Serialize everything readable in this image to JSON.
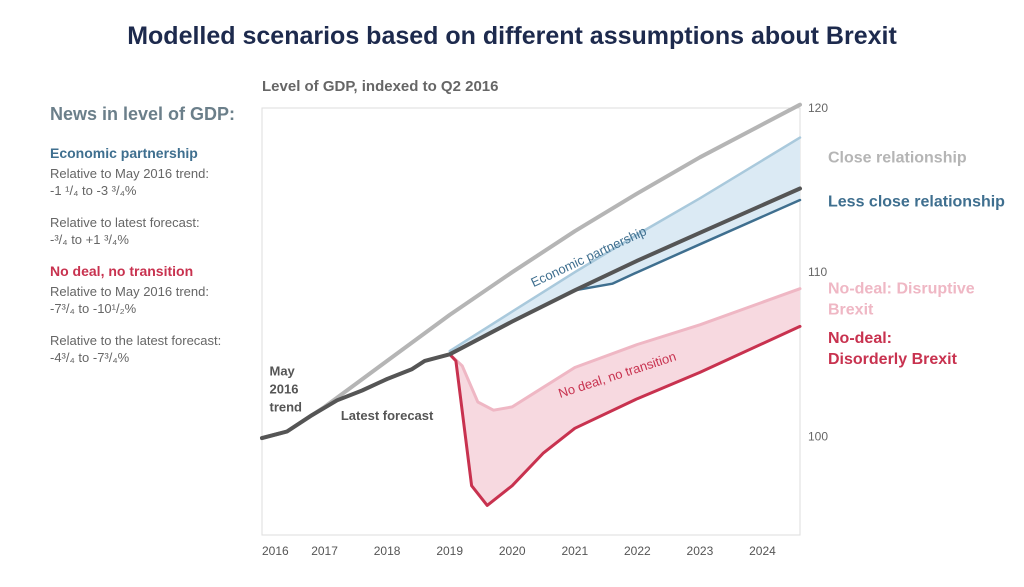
{
  "title": "Modelled scenarios based on different assumptions about Brexit",
  "sidebar": {
    "heading": "News in level of GDP:",
    "sections": [
      {
        "title": "Economic partnership",
        "items": [
          {
            "label": "Relative to May 2016 trend:",
            "value": "-1 ¹/₄ to -3 ³/₄%"
          },
          {
            "label": "Relative to latest forecast:",
            "value": "-³/₄ to +1 ³/₄%"
          }
        ]
      },
      {
        "title": "No deal, no transition",
        "items": [
          {
            "label": "Relative to May 2016 trend:",
            "value": "-7³/₄ to -10¹/₂%"
          },
          {
            "label": "Relative to the latest forecast:",
            "value": "-4³/₄ to -7³/₄%"
          }
        ]
      }
    ]
  },
  "colors": {
    "trend": "#b5b5b5",
    "forecast": "#555555",
    "close": "#a9c9dc",
    "close_fill": "#dbeaf4",
    "less_close": "#3f6f8f",
    "disruptive": "#efb7c4",
    "disorderly": "#c8324f",
    "nodeal_fill": "#f7d9e0",
    "title": "#1d2a4d"
  },
  "chart_data": {
    "type": "line",
    "subtitle": "Level of GDP, indexed to Q2 2016",
    "xlim": [
      2016.0,
      2024.6
    ],
    "ylim": [
      94,
      120
    ],
    "y_axis_position": "right",
    "grid": false,
    "y_ticks": [
      100,
      110,
      120
    ],
    "x_ticks": [
      {
        "value": 2016.0,
        "label": "2016"
      },
      {
        "value": 2017.0,
        "label": "2017"
      },
      {
        "value": 2018.0,
        "label": "2018"
      },
      {
        "value": 2019.0,
        "label": "2019"
      },
      {
        "value": 2020.0,
        "label": "2020"
      },
      {
        "value": 2021.0,
        "label": "2021"
      },
      {
        "value": 2022.0,
        "label": "2022"
      },
      {
        "value": 2023.0,
        "label": "2023"
      },
      {
        "value": 2024.0,
        "label": "2024"
      }
    ],
    "series": [
      {
        "name": "May 2016 trend",
        "key": "trend",
        "x": [
          2016.0,
          2016.4,
          2017.0,
          2018.0,
          2019.0,
          2020.0,
          2021.0,
          2022.0,
          2023.0,
          2024.6
        ],
        "y": [
          99.9,
          100.3,
          101.8,
          104.6,
          107.4,
          110.0,
          112.5,
          114.8,
          117.0,
          120.2
        ]
      },
      {
        "name": "Latest forecast",
        "key": "forecast",
        "x": [
          2016.0,
          2016.4,
          2016.8,
          2017.2,
          2017.6,
          2018.0,
          2018.4,
          2018.6,
          2019.0,
          2020.0,
          2021.0,
          2022.0,
          2023.0,
          2024.6
        ],
        "y": [
          99.9,
          100.3,
          101.3,
          102.2,
          102.8,
          103.5,
          104.1,
          104.6,
          105.0,
          107.0,
          108.9,
          110.7,
          112.4,
          115.1
        ]
      },
      {
        "name": "Close relationship",
        "key": "close",
        "x": [
          2019.0,
          2020.0,
          2021.0,
          2022.0,
          2023.0,
          2024.6
        ],
        "y": [
          105.2,
          107.6,
          110.0,
          112.3,
          114.5,
          118.2
        ]
      },
      {
        "name": "Less close relationship",
        "key": "less_close",
        "x": [
          2019.0,
          2020.0,
          2021.0,
          2021.6,
          2022.0,
          2023.0,
          2024.6
        ],
        "y": [
          105.0,
          107.0,
          108.9,
          109.3,
          110.0,
          111.7,
          114.4
        ]
      },
      {
        "name": "No-deal: Disruptive Brexit",
        "key": "disruptive",
        "x": [
          2019.0,
          2019.2,
          2019.45,
          2019.7,
          2020.0,
          2020.5,
          2021.0,
          2022.0,
          2023.0,
          2024.6
        ],
        "y": [
          105.0,
          104.3,
          102.1,
          101.6,
          101.8,
          103.0,
          104.2,
          105.6,
          106.8,
          109.0
        ]
      },
      {
        "name": "No-deal: Disorderly Brexit",
        "key": "disorderly",
        "x": [
          2019.0,
          2019.1,
          2019.35,
          2019.6,
          2020.0,
          2020.5,
          2021.0,
          2022.0,
          2023.0,
          2024.6
        ],
        "y": [
          105.0,
          104.6,
          97.0,
          95.8,
          97.0,
          99.0,
          100.5,
          102.3,
          103.9,
          106.7
        ]
      }
    ],
    "bands": [
      {
        "upper": "close",
        "lower": "less_close",
        "color_key": "close_fill"
      },
      {
        "upper": "disruptive",
        "lower": "disorderly",
        "color_key": "nodeal_fill"
      }
    ],
    "annotations": [
      {
        "text": "Economic partnership",
        "x": 2021.25,
        "y": 110.7,
        "angle": -25,
        "color_key": "less_close",
        "bold": false
      },
      {
        "text": "No deal, no transition",
        "x": 2021.7,
        "y": 103.5,
        "angle": -18,
        "color_key": "disorderly",
        "bold": false
      },
      {
        "text": "Latest forecast",
        "x": 2018.0,
        "y": 101.0,
        "angle": 0,
        "color_key": "forecast",
        "bold": true
      }
    ],
    "left_labels": [
      {
        "lines": [
          "May",
          "2016",
          "trend"
        ],
        "x": 2016.12,
        "y": 103.7
      }
    ],
    "right_labels": [
      {
        "lines": [
          "Close relationship"
        ],
        "y": 117.0,
        "color_key": "trend"
      },
      {
        "lines": [
          "Less close relationship"
        ],
        "y": 114.3,
        "color_key": "less_close"
      },
      {
        "lines": [
          "No-deal: Disruptive",
          "Brexit"
        ],
        "y": 109.0,
        "color_key": "disruptive"
      },
      {
        "lines": [
          "No-deal:",
          "Disorderly Brexit"
        ],
        "y": 106.0,
        "color_key": "disorderly"
      }
    ]
  }
}
